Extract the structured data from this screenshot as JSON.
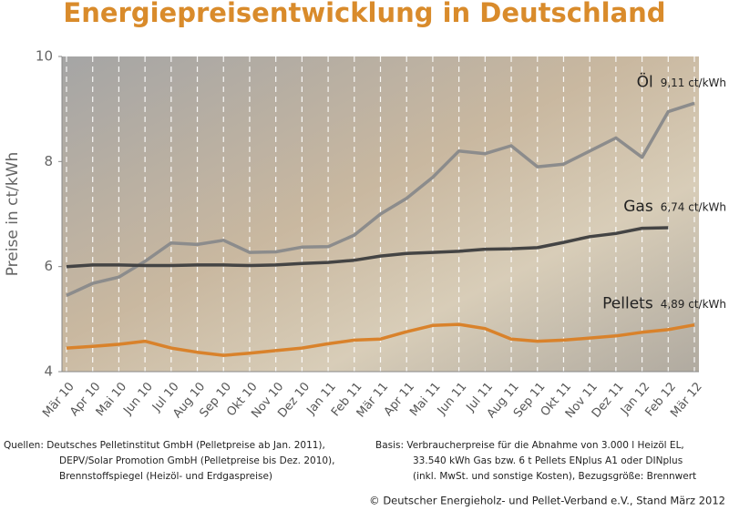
{
  "chart_data": {
    "type": "line",
    "title": "Energiepreisentwicklung in Deutschland",
    "y_label": "Preise in ct/kWh",
    "categories": [
      "Mär 10",
      "Apr 10",
      "Mai 10",
      "Jun 10",
      "Jul 10",
      "Aug 10",
      "Sep 10",
      "Okt 10",
      "Nov 10",
      "Dez 10",
      "Jan 11",
      "Feb 11",
      "Mär 11",
      "Apr 11",
      "Mai 11",
      "Jun 11",
      "Jul 11",
      "Aug 11",
      "Sep 11",
      "Okt 11",
      "Nov 11",
      "Dez 11",
      "Jan 12",
      "Feb 12",
      "Mär 12"
    ],
    "series": [
      {
        "name": "Öl",
        "color": "#8c8c8c",
        "end_label": "9,11 ct/kWh",
        "values": [
          5.45,
          5.68,
          5.8,
          6.1,
          6.45,
          6.42,
          6.5,
          6.27,
          6.28,
          6.37,
          6.38,
          6.6,
          7.0,
          7.3,
          7.7,
          8.2,
          8.15,
          8.3,
          7.9,
          7.95,
          8.2,
          8.45,
          8.08,
          8.95,
          9.11
        ]
      },
      {
        "name": "Gas",
        "color": "#444444",
        "end_label": "6,74 ct/kWh",
        "values": [
          6.0,
          6.03,
          6.03,
          6.02,
          6.02,
          6.03,
          6.03,
          6.02,
          6.03,
          6.06,
          6.08,
          6.12,
          6.2,
          6.25,
          6.27,
          6.29,
          6.33,
          6.34,
          6.36,
          6.46,
          6.57,
          6.63,
          6.73,
          6.74,
          null
        ]
      },
      {
        "name": "Pellets",
        "color": "#d9822b",
        "end_label": "4,89 ct/kWh",
        "values": [
          4.45,
          4.48,
          4.52,
          4.58,
          4.45,
          4.37,
          4.31,
          4.35,
          4.4,
          4.45,
          4.53,
          4.6,
          4.62,
          4.76,
          4.88,
          4.9,
          4.82,
          4.62,
          4.58,
          4.6,
          4.64,
          4.68,
          4.75,
          4.8,
          4.89
        ]
      }
    ],
    "ylim": [
      4,
      10
    ],
    "yticks": [
      4,
      6,
      8,
      10
    ],
    "grid": true,
    "sources": [
      "Quellen: Deutsches Pelletinstitut GmbH (Pelletpreise ab Jan. 2011),",
      "DEPV/Solar Promotion GmbH (Pelletpreise bis Dez. 2010),",
      "Brennstoffspiegel (Heizöl- und Erdgaspreise)"
    ],
    "basis": [
      "Basis: Verbraucherpreise für die Abnahme von 3.000 l Heizöl EL,",
      "33.540 kWh Gas bzw. 6 t Pellets ENplus A1 oder DINplus",
      "(inkl. MwSt. und sonstige Kosten), Bezugsgröße: Brennwert"
    ],
    "copyright": "© Deutscher Energieholz- und Pellet-Verband e.V., Stand März 2012"
  }
}
